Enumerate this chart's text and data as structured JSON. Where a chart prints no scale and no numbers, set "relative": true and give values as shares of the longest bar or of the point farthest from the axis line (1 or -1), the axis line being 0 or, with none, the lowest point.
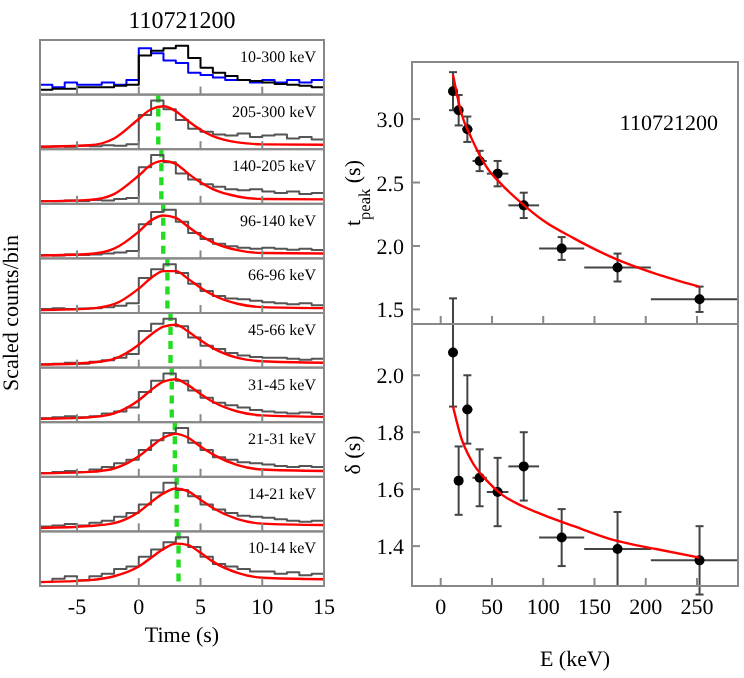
{
  "chart_data": [
    {
      "type": "step",
      "title": "110721200",
      "annotations": [
        "10-300 keV"
      ],
      "relative": true,
      "xlim": [
        -8,
        15
      ],
      "xticks": [
        -5,
        0,
        5,
        10,
        15
      ],
      "tick_labels": false,
      "x": [
        -8,
        -7,
        -6,
        -5,
        -4,
        -3,
        -2,
        -1,
        0,
        1,
        2,
        3,
        4,
        5,
        6,
        7,
        8,
        9,
        10,
        11,
        12,
        13,
        14,
        15
      ],
      "series": [
        {
          "color": "#0000ff",
          "values": [
            0.2,
            0.15,
            0.25,
            0.2,
            0.2,
            0.25,
            0.2,
            0.3,
            0.95,
            0.85,
            0.7,
            0.65,
            0.45,
            0.4,
            0.35,
            0.3,
            0.3,
            0.25,
            0.3,
            0.25,
            0.3,
            0.25,
            0.3,
            0.2
          ]
        },
        {
          "color": "#000000",
          "values": [
            0.1,
            0.12,
            0.12,
            0.15,
            0.15,
            0.15,
            0.18,
            0.2,
            0.8,
            0.9,
            0.95,
            1.0,
            0.75,
            0.55,
            0.45,
            0.38,
            0.3,
            0.28,
            0.25,
            0.22,
            0.2,
            0.18,
            0.15,
            0.12
          ]
        }
      ]
    },
    {
      "type": "step",
      "annotations": [
        "205-300 keV"
      ],
      "relative": true,
      "xlim": [
        -8,
        15
      ],
      "xticks": [
        -5,
        0,
        5,
        10,
        15
      ],
      "tick_labels": false,
      "x": [
        -8,
        -7,
        -6,
        -5,
        -4,
        -3,
        -2,
        -1,
        0,
        1,
        2,
        3,
        4,
        5,
        6,
        7,
        8,
        9,
        10,
        11,
        12,
        13,
        14,
        15
      ],
      "ref_lines": [
        {
          "axis": "x",
          "value": 1.58,
          "color": "#22dd22",
          "line_style": "dashed"
        }
      ],
      "series": [
        {
          "color": "#555555",
          "values": [
            0.05,
            0.06,
            0.05,
            0.07,
            0.06,
            0.08,
            0.07,
            0.1,
            0.7,
            1.0,
            0.82,
            0.6,
            0.42,
            0.36,
            0.3,
            0.28,
            0.32,
            0.25,
            0.28,
            0.3,
            0.22,
            0.25,
            0.2,
            0.18
          ]
        },
        {
          "type": "line",
          "color": "#ff0000",
          "x": [
            -8,
            -4,
            -2,
            0,
            1,
            2,
            3,
            4,
            5,
            6,
            8,
            10,
            15
          ],
          "values": [
            0.05,
            0.08,
            0.22,
            0.62,
            0.82,
            0.88,
            0.78,
            0.58,
            0.4,
            0.27,
            0.14,
            0.1,
            0.09
          ]
        }
      ]
    },
    {
      "type": "step",
      "annotations": [
        "140-205 keV"
      ],
      "relative": true,
      "xlim": [
        -8,
        15
      ],
      "xticks": [
        -5,
        0,
        5,
        10,
        15
      ],
      "tick_labels": false,
      "x": [
        -8,
        -7,
        -6,
        -5,
        -4,
        -3,
        -2,
        -1,
        0,
        1,
        2,
        3,
        4,
        5,
        6,
        7,
        8,
        9,
        10,
        11,
        12,
        13,
        14,
        15
      ],
      "ref_lines": [
        {
          "axis": "x",
          "value": 1.83,
          "color": "#22dd22",
          "line_style": "dashed"
        }
      ],
      "series": [
        {
          "color": "#555555",
          "values": [
            0.06,
            0.05,
            0.07,
            0.06,
            0.08,
            0.07,
            0.1,
            0.12,
            0.75,
            1.0,
            0.85,
            0.62,
            0.5,
            0.4,
            0.35,
            0.3,
            0.28,
            0.3,
            0.25,
            0.22,
            0.25,
            0.2,
            0.22,
            0.18
          ]
        },
        {
          "type": "line",
          "color": "#ff0000",
          "x": [
            -8,
            -4,
            -2,
            0,
            1,
            2,
            3,
            4,
            5,
            6,
            8,
            10,
            15
          ],
          "values": [
            0.05,
            0.08,
            0.2,
            0.58,
            0.8,
            0.88,
            0.82,
            0.62,
            0.44,
            0.3,
            0.15,
            0.1,
            0.09
          ]
        }
      ]
    },
    {
      "type": "step",
      "annotations": [
        "96-140 keV"
      ],
      "relative": true,
      "xlim": [
        -8,
        15
      ],
      "xticks": [
        -5,
        0,
        5,
        10,
        15
      ],
      "tick_labels": false,
      "x": [
        -8,
        -7,
        -6,
        -5,
        -4,
        -3,
        -2,
        -1,
        0,
        1,
        2,
        3,
        4,
        5,
        6,
        7,
        8,
        9,
        10,
        11,
        12,
        13,
        14,
        15
      ],
      "ref_lines": [
        {
          "axis": "x",
          "value": 1.98,
          "color": "#22dd22",
          "line_style": "dashed"
        }
      ],
      "series": [
        {
          "color": "#555555",
          "values": [
            0.07,
            0.06,
            0.08,
            0.07,
            0.08,
            0.1,
            0.12,
            0.15,
            0.7,
            0.95,
            1.0,
            0.75,
            0.52,
            0.4,
            0.3,
            0.25,
            0.22,
            0.2,
            0.22,
            0.2,
            0.18,
            0.2,
            0.17,
            0.15
          ]
        },
        {
          "type": "line",
          "color": "#ff0000",
          "x": [
            -8,
            -4,
            -2,
            0,
            1,
            2,
            3,
            4,
            5,
            6,
            8,
            10,
            15
          ],
          "values": [
            0.06,
            0.09,
            0.2,
            0.55,
            0.78,
            0.88,
            0.83,
            0.65,
            0.47,
            0.33,
            0.17,
            0.11,
            0.1
          ]
        }
      ]
    },
    {
      "type": "step",
      "annotations": [
        "66-96 keV"
      ],
      "relative": true,
      "xlim": [
        -8,
        15
      ],
      "xticks": [
        -5,
        0,
        5,
        10,
        15
      ],
      "tick_labels": false,
      "x": [
        -8,
        -7,
        -6,
        -5,
        -4,
        -3,
        -2,
        -1,
        0,
        1,
        2,
        3,
        4,
        5,
        6,
        7,
        8,
        9,
        10,
        11,
        12,
        13,
        14,
        15
      ],
      "ref_lines": [
        {
          "axis": "x",
          "value": 2.32,
          "color": "#22dd22",
          "line_style": "dashed"
        }
      ],
      "series": [
        {
          "color": "#555555",
          "values": [
            0.08,
            0.1,
            0.08,
            0.09,
            0.1,
            0.12,
            0.15,
            0.2,
            0.72,
            0.9,
            1.0,
            0.82,
            0.6,
            0.45,
            0.35,
            0.3,
            0.28,
            0.25,
            0.22,
            0.2,
            0.18,
            0.2,
            0.16,
            0.15
          ]
        },
        {
          "type": "line",
          "color": "#ff0000",
          "x": [
            -8,
            -4,
            -2,
            0,
            1,
            2,
            3,
            4,
            5,
            6,
            8,
            10,
            15
          ],
          "values": [
            0.06,
            0.09,
            0.18,
            0.5,
            0.72,
            0.86,
            0.86,
            0.7,
            0.52,
            0.37,
            0.19,
            0.12,
            0.1
          ]
        }
      ]
    },
    {
      "type": "step",
      "ylabel": "Scaled counts/bin",
      "annotations": [
        "45-66 keV"
      ],
      "relative": true,
      "xlim": [
        -8,
        15
      ],
      "xticks": [
        -5,
        0,
        5,
        10,
        15
      ],
      "tick_labels": false,
      "x": [
        -8,
        -7,
        -6,
        -5,
        -4,
        -3,
        -2,
        -1,
        0,
        1,
        2,
        3,
        4,
        5,
        6,
        7,
        8,
        9,
        10,
        11,
        12,
        13,
        14,
        15
      ],
      "ref_lines": [
        {
          "axis": "x",
          "value": 2.57,
          "color": "#22dd22",
          "line_style": "dashed"
        }
      ],
      "series": [
        {
          "color": "#555555",
          "values": [
            0.07,
            0.08,
            0.1,
            0.08,
            0.12,
            0.15,
            0.2,
            0.28,
            0.75,
            0.9,
            1.0,
            0.85,
            0.62,
            0.45,
            0.38,
            0.3,
            0.25,
            0.22,
            0.2,
            0.2,
            0.18,
            0.16,
            0.18,
            0.15
          ]
        },
        {
          "type": "line",
          "color": "#ff0000",
          "x": [
            -8,
            -4,
            -2,
            0,
            1,
            2,
            3,
            4,
            5,
            6,
            8,
            10,
            15
          ],
          "values": [
            0.06,
            0.1,
            0.18,
            0.47,
            0.68,
            0.84,
            0.88,
            0.74,
            0.56,
            0.4,
            0.2,
            0.13,
            0.1
          ]
        }
      ]
    },
    {
      "type": "step",
      "annotations": [
        "31-45 keV"
      ],
      "relative": true,
      "xlim": [
        -8,
        15
      ],
      "xticks": [
        -5,
        0,
        5,
        10,
        15
      ],
      "tick_labels": false,
      "x": [
        -8,
        -7,
        -6,
        -5,
        -4,
        -3,
        -2,
        -1,
        0,
        1,
        2,
        3,
        4,
        5,
        6,
        7,
        8,
        9,
        10,
        11,
        12,
        13,
        14,
        15
      ],
      "ref_lines": [
        {
          "axis": "x",
          "value": 2.67,
          "color": "#22dd22",
          "line_style": "dashed"
        }
      ],
      "series": [
        {
          "color": "#555555",
          "values": [
            0.08,
            0.1,
            0.12,
            0.1,
            0.12,
            0.18,
            0.22,
            0.3,
            0.62,
            0.85,
            1.0,
            0.85,
            0.65,
            0.5,
            0.4,
            0.35,
            0.3,
            0.25,
            0.22,
            0.2,
            0.18,
            0.2,
            0.17,
            0.18
          ]
        },
        {
          "type": "line",
          "color": "#ff0000",
          "x": [
            -8,
            -4,
            -2,
            0,
            1,
            2,
            3,
            4,
            5,
            6,
            8,
            10,
            15
          ],
          "values": [
            0.07,
            0.1,
            0.18,
            0.45,
            0.66,
            0.83,
            0.88,
            0.76,
            0.58,
            0.42,
            0.22,
            0.14,
            0.11
          ]
        }
      ]
    },
    {
      "type": "step",
      "annotations": [
        "21-31 keV"
      ],
      "relative": true,
      "xlim": [
        -8,
        15
      ],
      "xticks": [
        -5,
        0,
        5,
        10,
        15
      ],
      "tick_labels": false,
      "x": [
        -8,
        -7,
        -6,
        -5,
        -4,
        -3,
        -2,
        -1,
        0,
        1,
        2,
        3,
        4,
        5,
        6,
        7,
        8,
        9,
        10,
        11,
        12,
        13,
        14,
        15
      ],
      "ref_lines": [
        {
          "axis": "x",
          "value": 2.92,
          "color": "#22dd22",
          "line_style": "dashed"
        }
      ],
      "series": [
        {
          "color": "#555555",
          "values": [
            0.08,
            0.1,
            0.12,
            0.1,
            0.15,
            0.2,
            0.28,
            0.35,
            0.55,
            0.75,
            0.9,
            1.0,
            0.7,
            0.55,
            0.4,
            0.35,
            0.3,
            0.28,
            0.25,
            0.22,
            0.2,
            0.22,
            0.2,
            0.18
          ]
        },
        {
          "type": "line",
          "color": "#ff0000",
          "x": [
            -8,
            -4,
            -2,
            0,
            1,
            2,
            3,
            4,
            5,
            6,
            8,
            10,
            15
          ],
          "values": [
            0.07,
            0.1,
            0.17,
            0.42,
            0.62,
            0.8,
            0.88,
            0.8,
            0.62,
            0.46,
            0.24,
            0.15,
            0.12
          ]
        }
      ]
    },
    {
      "type": "step",
      "annotations": [
        "14-21 keV"
      ],
      "relative": true,
      "xlim": [
        -8,
        15
      ],
      "xticks": [
        -5,
        0,
        5,
        10,
        15
      ],
      "tick_labels": false,
      "x": [
        -8,
        -7,
        -6,
        -5,
        -4,
        -3,
        -2,
        -1,
        0,
        1,
        2,
        3,
        4,
        5,
        6,
        7,
        8,
        9,
        10,
        11,
        12,
        13,
        14,
        15
      ],
      "ref_lines": [
        {
          "axis": "x",
          "value": 3.07,
          "color": "#22dd22",
          "line_style": "dashed"
        }
      ],
      "series": [
        {
          "color": "#555555",
          "values": [
            0.1,
            0.12,
            0.15,
            0.12,
            0.18,
            0.22,
            0.3,
            0.38,
            0.55,
            0.8,
            1.0,
            0.85,
            0.72,
            0.55,
            0.45,
            0.38,
            0.32,
            0.3,
            0.28,
            0.25,
            0.22,
            0.2,
            0.22,
            0.2
          ]
        },
        {
          "type": "line",
          "color": "#ff0000",
          "x": [
            -8,
            -4,
            -2,
            0,
            1,
            2,
            3,
            4,
            5,
            6,
            8,
            10,
            15
          ],
          "values": [
            0.07,
            0.11,
            0.17,
            0.4,
            0.6,
            0.78,
            0.88,
            0.82,
            0.65,
            0.48,
            0.25,
            0.16,
            0.13
          ]
        }
      ]
    },
    {
      "type": "step",
      "xlabel": "Time (s)",
      "annotations": [
        "10-14 keV"
      ],
      "relative": true,
      "xlim": [
        -8,
        15
      ],
      "xticks": [
        -5,
        0,
        5,
        10,
        15
      ],
      "tick_labels": "x",
      "x": [
        -8,
        -7,
        -6,
        -5,
        -4,
        -3,
        -2,
        -1,
        0,
        1,
        2,
        3,
        4,
        5,
        6,
        7,
        8,
        9,
        10,
        11,
        12,
        13,
        14,
        15
      ],
      "ref_lines": [
        {
          "axis": "x",
          "value": 3.22,
          "color": "#22dd22",
          "line_style": "dashed"
        }
      ],
      "series": [
        {
          "color": "#555555",
          "values": [
            0.08,
            0.15,
            0.2,
            0.12,
            0.2,
            0.25,
            0.35,
            0.4,
            0.6,
            0.75,
            0.9,
            1.0,
            0.8,
            0.6,
            0.45,
            0.4,
            0.35,
            0.3,
            0.3,
            0.25,
            0.28,
            0.22,
            0.25,
            0.22
          ]
        },
        {
          "type": "line",
          "color": "#ff0000",
          "x": [
            -8,
            -4,
            -2,
            0,
            1,
            2,
            3,
            4,
            5,
            6,
            8,
            10,
            15
          ],
          "values": [
            0.08,
            0.12,
            0.2,
            0.4,
            0.58,
            0.76,
            0.87,
            0.84,
            0.68,
            0.5,
            0.27,
            0.17,
            0.14
          ]
        }
      ]
    },
    {
      "type": "scatter",
      "ylabel": "t$_{peak}$ (s)",
      "annotations": [
        "110721200"
      ],
      "xlim": [
        -28,
        290
      ],
      "xticks": [
        0,
        50,
        100,
        150,
        200,
        250
      ],
      "ylim": [
        1.385,
        3.45
      ],
      "yticks": [
        {
          "value": 1.5,
          "label": "1.5"
        },
        {
          "value": 2,
          "label": "2.0"
        },
        {
          "value": 2.5,
          "label": "2.5"
        },
        {
          "value": 3,
          "label": "3.0"
        }
      ],
      "tick_labels": "y",
      "x": [
        12,
        17.5,
        26,
        38,
        55.5,
        81,
        118,
        172.5,
        252.5
      ],
      "series": [
        {
          "color": "#000000",
          "marker": "circle",
          "values": [
            3.22,
            3.07,
            2.92,
            2.67,
            2.57,
            2.32,
            1.98,
            1.83,
            1.58
          ],
          "errors": [
            0.15,
            0.12,
            0.1,
            0.08,
            0.1,
            0.1,
            0.09,
            0.11,
            0.1
          ],
          "xerrors": [
            [
              10,
              14
            ],
            [
              14,
              21
            ],
            [
              21,
              31
            ],
            [
              31,
              45
            ],
            [
              45,
              66
            ],
            [
              66,
              96
            ],
            [
              96,
              140
            ],
            [
              140,
              205
            ],
            [
              205,
              290
            ]
          ]
        },
        {
          "type": "line",
          "color": "#ff0000",
          "x": [
            12,
            20,
            30,
            45,
            60,
            80,
            100,
            130,
            170,
            210,
            252
          ],
          "values": [
            3.35,
            3.05,
            2.85,
            2.62,
            2.48,
            2.33,
            2.2,
            2.06,
            1.9,
            1.78,
            1.68
          ]
        }
      ]
    },
    {
      "type": "scatter",
      "ylabel": "δ (s)",
      "xlabel": "E (keV)",
      "xlim": [
        -28,
        290
      ],
      "xticks": [
        0,
        50,
        100,
        150,
        200,
        250
      ],
      "ylim": [
        1.26,
        2.18
      ],
      "yticks": [
        {
          "value": 1.4,
          "label": "1.4"
        },
        {
          "value": 1.6,
          "label": "1.6"
        },
        {
          "value": 1.8,
          "label": "1.8"
        },
        {
          "value": 2,
          "label": "2.0"
        }
      ],
      "x": [
        12,
        17.5,
        26,
        38,
        55.5,
        81,
        118,
        172.5,
        252.5
      ],
      "series": [
        {
          "color": "#000000",
          "marker": "circle",
          "values": [
            2.08,
            1.63,
            1.88,
            1.64,
            1.59,
            1.68,
            1.43,
            1.39,
            1.35
          ],
          "errors": [
            0.19,
            0.12,
            0.12,
            0.1,
            0.12,
            0.12,
            0.1,
            0.13,
            0.12
          ],
          "xerrors": [
            [
              10,
              14
            ],
            [
              14,
              21
            ],
            [
              21,
              31
            ],
            [
              31,
              45
            ],
            [
              45,
              66
            ],
            [
              66,
              96
            ],
            [
              96,
              140
            ],
            [
              140,
              205
            ],
            [
              205,
              290
            ]
          ]
        },
        {
          "type": "line",
          "color": "#ff0000",
          "x": [
            12,
            20,
            30,
            45,
            60,
            80,
            100,
            130,
            170,
            210,
            252
          ],
          "values": [
            1.89,
            1.78,
            1.7,
            1.63,
            1.58,
            1.54,
            1.51,
            1.47,
            1.42,
            1.39,
            1.36
          ]
        }
      ]
    }
  ]
}
